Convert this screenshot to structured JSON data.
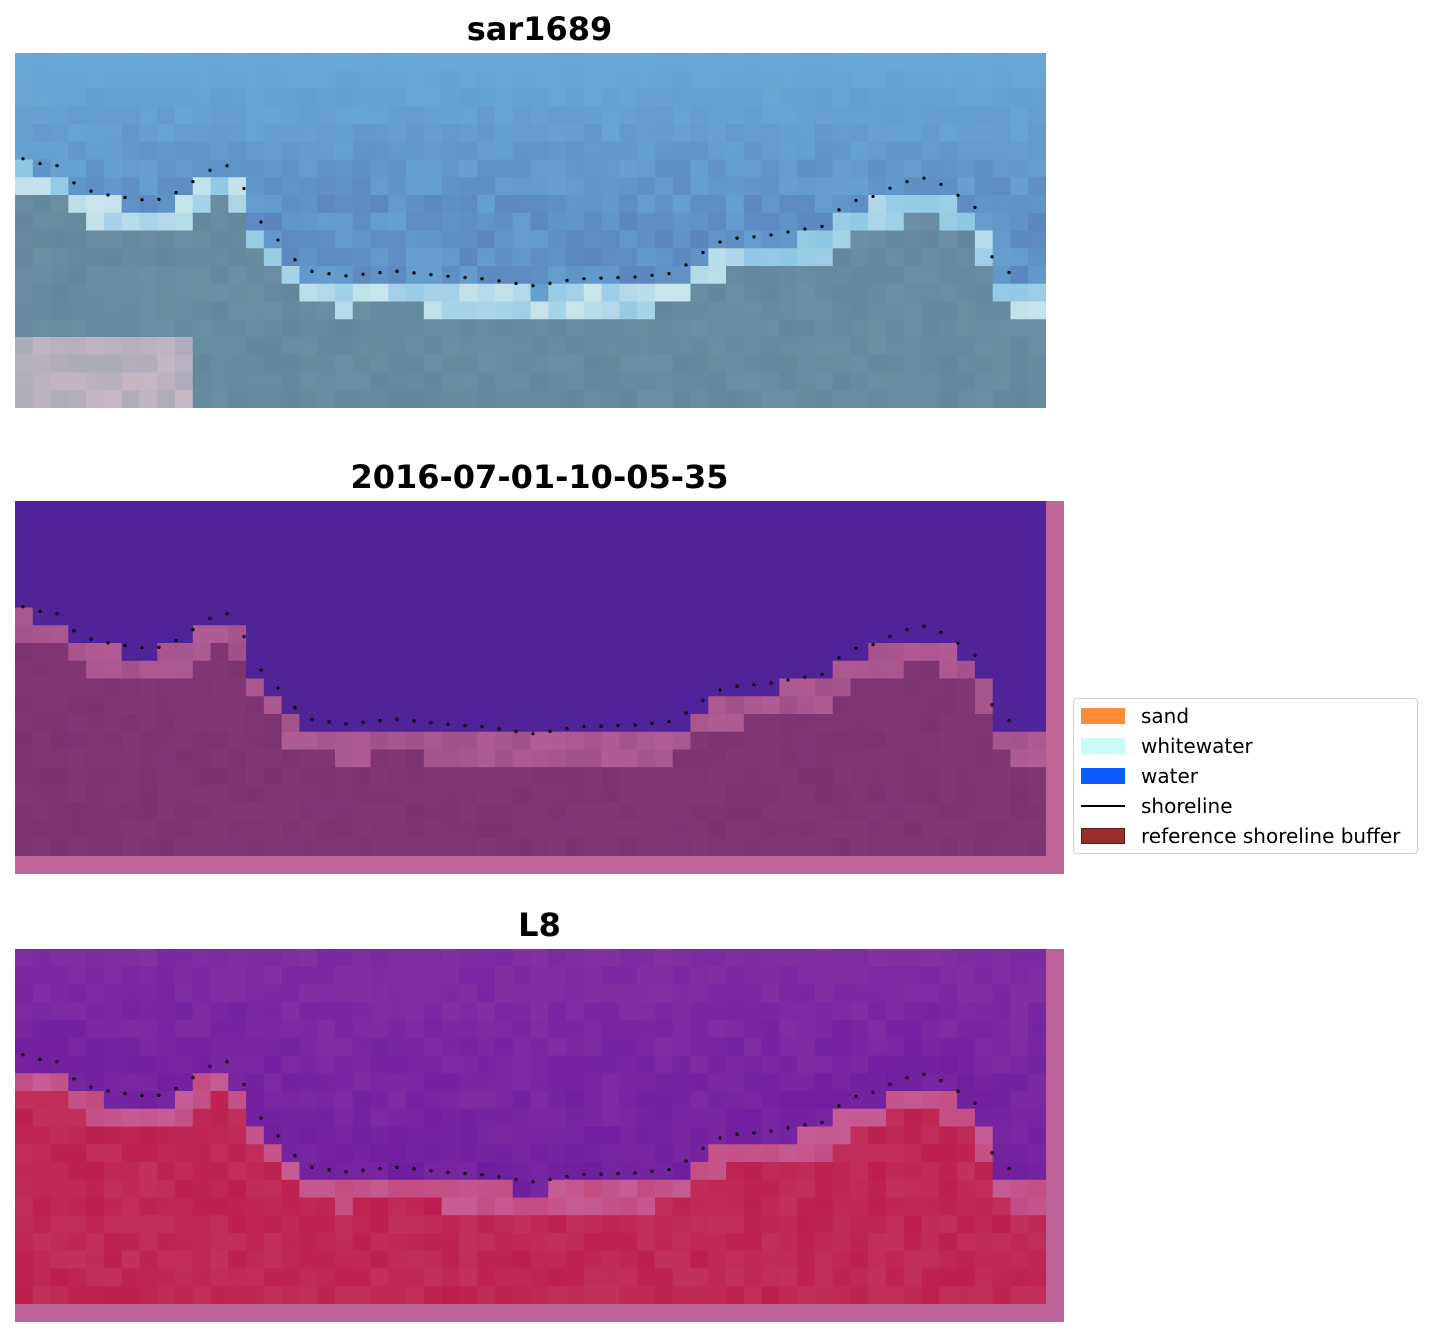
{
  "panels": [
    {
      "id": "rgb",
      "title": "sar1689"
    },
    {
      "id": "classified",
      "title": "2016-07-01-10-05-35"
    },
    {
      "id": "index",
      "title": "L8"
    }
  ],
  "legend": {
    "items": [
      {
        "label": "sand",
        "color": "#ff8c3a",
        "kind": "patch"
      },
      {
        "label": "whitewater",
        "color": "#c8fafa",
        "kind": "patch"
      },
      {
        "label": "water",
        "color": "#0a5cff",
        "kind": "patch"
      },
      {
        "label": "shoreline",
        "color": "#000000",
        "kind": "line"
      },
      {
        "label": "reference shoreline buffer",
        "color": "#9b2d2d",
        "kind": "patch"
      }
    ]
  },
  "colors": {
    "rgb_sky": "#6fb8e0",
    "rgb_deep": "#5b86bd",
    "rgb_land": "#6a8fa2",
    "rgb_white": "#e8f4f0",
    "class_water": "#512398",
    "class_land": "#7b336f",
    "class_border": "#bf6598",
    "idx_water": "#6c1a9e",
    "idx_land": "#c2305e",
    "idx_border": "#bd6299"
  }
}
